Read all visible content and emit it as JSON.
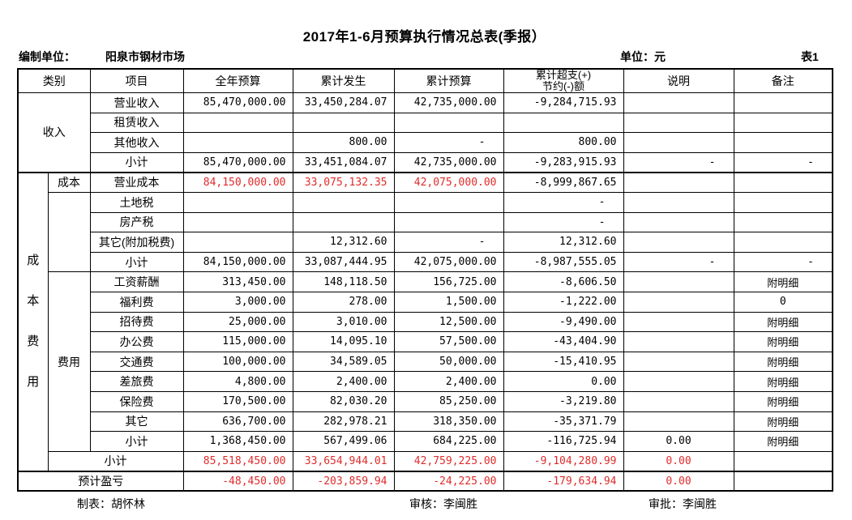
{
  "title": "2017年1-6月预算执行情况总表(季报）",
  "meta": {
    "prepared_by_label": "编制单位：",
    "prepared_by_value": "阳泉市钢材市场",
    "unit_label": "单位：元",
    "sheet_label": "表1"
  },
  "colors": {
    "highlight_red": "#e02b2b",
    "text_black": "#000000",
    "border": "#000000"
  },
  "table": {
    "header": {
      "category": "类别",
      "item": "项目",
      "annual_budget": "全年预算",
      "accumulated_actual": "累计发生",
      "accumulated_budget": "累计预算",
      "variance": "累计超支(+)\n节约(-)额",
      "note": "说明",
      "remark": "备注"
    },
    "categories": {
      "income": "收入",
      "cost_expense": "成本费用",
      "cost": "成本",
      "expense": "费用"
    },
    "rows": [
      {
        "item": "营业收入",
        "values": [
          "85,470,000.00",
          "33,450,284.07",
          "42,735,000.00",
          "-9,284,715.93",
          "",
          ""
        ]
      },
      {
        "item": "租赁收入",
        "values": [
          "",
          "",
          "",
          "",
          "",
          ""
        ]
      },
      {
        "item": "其他收入",
        "values": [
          "",
          "800.00",
          "-",
          "800.00",
          "",
          ""
        ]
      },
      {
        "item": "小计",
        "values": [
          "85,470,000.00",
          "33,451,084.07",
          "42,735,000.00",
          "-9,283,915.93",
          "-",
          "-"
        ]
      },
      {
        "item": "营业成本",
        "values": [
          "84,150,000.00",
          "33,075,132.35",
          "42,075,000.00",
          "-8,999,867.65",
          "",
          ""
        ],
        "red": [
          1,
          1,
          1,
          0,
          0,
          0
        ]
      },
      {
        "item": "土地税",
        "values": [
          "",
          "",
          "",
          "-",
          "",
          ""
        ]
      },
      {
        "item": "房产税",
        "values": [
          "",
          "",
          "",
          "-",
          "",
          ""
        ]
      },
      {
        "item": "其它(附加税费)",
        "values": [
          "",
          "12,312.60",
          "-",
          "12,312.60",
          "",
          ""
        ]
      },
      {
        "item": "小计",
        "values": [
          "84,150,000.00",
          "33,087,444.95",
          "42,075,000.00",
          "-8,987,555.05",
          "-",
          "-"
        ]
      },
      {
        "item": "工资薪酬",
        "values": [
          "313,450.00",
          "148,118.50",
          "156,725.00",
          "-8,606.50",
          "",
          "附明细"
        ]
      },
      {
        "item": "福利费",
        "values": [
          "3,000.00",
          "278.00",
          "1,500.00",
          "-1,222.00",
          "",
          "0"
        ]
      },
      {
        "item": "招待费",
        "values": [
          "25,000.00",
          "3,010.00",
          "12,500.00",
          "-9,490.00",
          "",
          "附明细"
        ]
      },
      {
        "item": "办公费",
        "values": [
          "115,000.00",
          "14,095.10",
          "57,500.00",
          "-43,404.90",
          "",
          "附明细"
        ]
      },
      {
        "item": "交通费",
        "values": [
          "100,000.00",
          "34,589.05",
          "50,000.00",
          "-15,410.95",
          "",
          "附明细"
        ]
      },
      {
        "item": "差旅费",
        "values": [
          "4,800.00",
          "2,400.00",
          "2,400.00",
          "0.00",
          "",
          "附明细"
        ]
      },
      {
        "item": "保险费",
        "values": [
          "170,500.00",
          "82,030.20",
          "85,250.00",
          "-3,219.80",
          "",
          "附明细"
        ]
      },
      {
        "item": "其它",
        "values": [
          "636,700.00",
          "282,978.21",
          "318,350.00",
          "-35,371.79",
          "",
          "附明细"
        ]
      },
      {
        "item": "小计",
        "values": [
          "1,368,450.00",
          "567,499.06",
          "684,225.00",
          "-116,725.94",
          "0.00",
          "附明细"
        ]
      },
      {
        "item": "小计",
        "values": [
          "85,518,450.00",
          "33,654,944.01",
          "42,759,225.00",
          "-9,104,280.99",
          "0.00",
          ""
        ],
        "red": [
          1,
          1,
          1,
          1,
          1,
          0
        ]
      },
      {
        "item": "预计盈亏",
        "values": [
          "-48,450.00",
          "-203,859.94",
          "-24,225.00",
          "-179,634.94",
          "0.00",
          ""
        ],
        "red": [
          1,
          1,
          1,
          1,
          1,
          0
        ]
      }
    ]
  },
  "footer": {
    "preparer": "制表：胡怀林",
    "reviewer": "审核：李闽胜",
    "approver": "审批：李闽胜"
  }
}
